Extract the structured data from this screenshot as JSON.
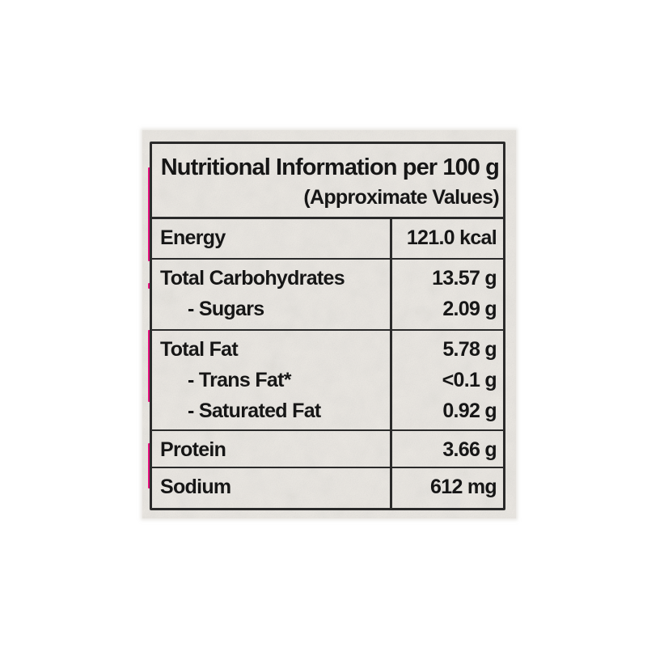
{
  "label": {
    "header": {
      "title": "Nutritional Information per 100 g",
      "subtitle": "(Approximate Values)"
    },
    "rows": [
      {
        "lines": [
          {
            "name": "Energy",
            "value": "121.0 kcal",
            "indent": false
          }
        ]
      },
      {
        "lines": [
          {
            "name": "Total Carbohydrates",
            "value": "13.57 g",
            "indent": false
          },
          {
            "name": "- Sugars",
            "value": "2.09 g",
            "indent": true
          }
        ]
      },
      {
        "lines": [
          {
            "name": "Total Fat",
            "value": "5.78 g",
            "indent": false
          },
          {
            "name": "- Trans Fat*",
            "value": "<0.1 g",
            "indent": true
          },
          {
            "name": "- Saturated Fat",
            "value": "0.92 g",
            "indent": true
          }
        ]
      },
      {
        "lines": [
          {
            "name": "Protein",
            "value": "3.66 g",
            "indent": false
          }
        ]
      },
      {
        "lines": [
          {
            "name": "Sodium",
            "value": "612 mg",
            "indent": false
          }
        ]
      }
    ],
    "colors": {
      "paper": "#edeae5",
      "border": "#2a2a2a",
      "text": "#161616",
      "accent_stripe": "#e5137f",
      "page_background": "#ffffff"
    }
  }
}
